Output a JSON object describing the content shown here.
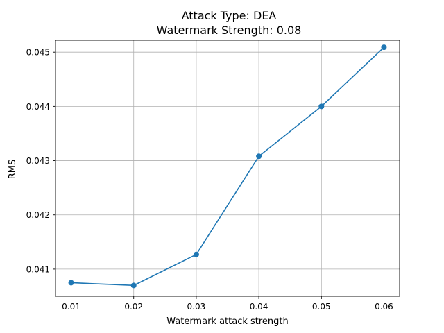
{
  "chart_data": {
    "type": "line",
    "title_line1": "Attack Type: DEA",
    "title_line2": "Watermark Strength: 0.08",
    "xlabel": "Watermark attack strength",
    "ylabel": "RMS",
    "x": [
      0.01,
      0.02,
      0.03,
      0.04,
      0.05,
      0.06
    ],
    "series": [
      {
        "values": [
          0.04075,
          0.0407,
          0.04127,
          0.04308,
          0.044,
          0.04509
        ],
        "color": "#1f77b4"
      }
    ],
    "xlim": [
      0.0075,
      0.0625
    ],
    "ylim": [
      0.0405,
      0.04522
    ],
    "xticks": [
      0.01,
      0.02,
      0.03,
      0.04,
      0.05,
      0.06
    ],
    "xtick_labels": [
      "0.01",
      "0.02",
      "0.03",
      "0.04",
      "0.05",
      "0.06"
    ],
    "yticks": [
      0.041,
      0.042,
      0.043,
      0.044,
      0.045
    ],
    "ytick_labels": [
      "0.041",
      "0.042",
      "0.043",
      "0.044",
      "0.045"
    ],
    "grid": true,
    "marker": "circle"
  }
}
